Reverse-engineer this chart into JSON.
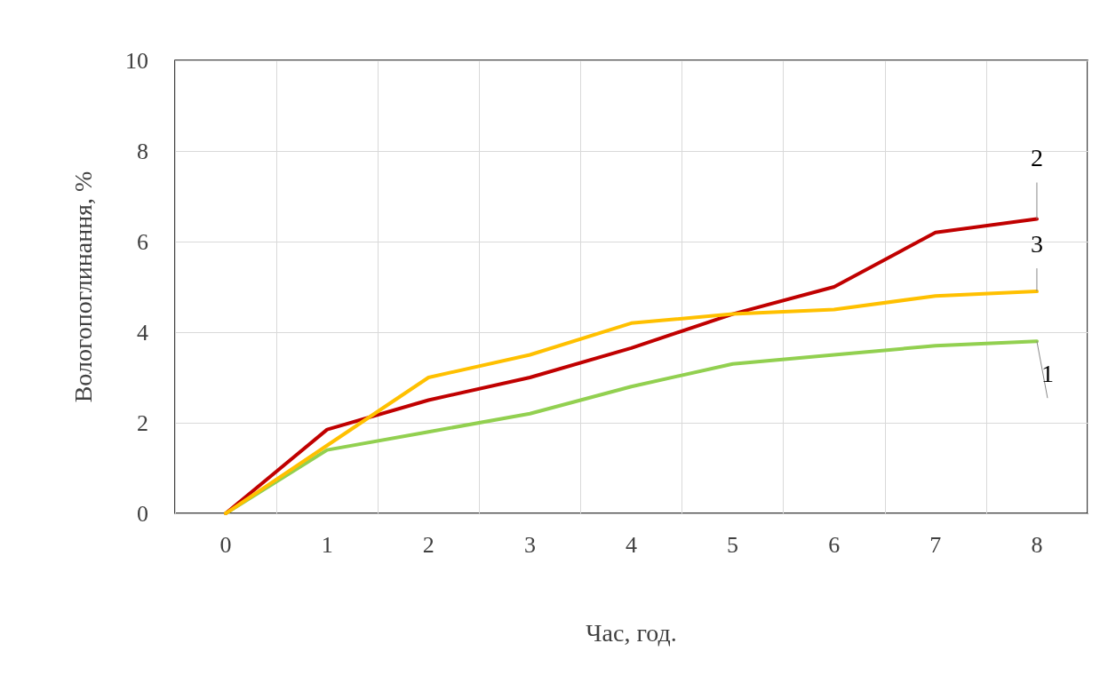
{
  "chart_data": {
    "type": "line",
    "xlabel": "Час, год.",
    "ylabel": "Вологопоглинання, %",
    "categories": [
      "0",
      "1",
      "2",
      "3",
      "4",
      "5",
      "6",
      "7",
      "8"
    ],
    "series": [
      {
        "name": "1",
        "color": "#92d050",
        "values": [
          0,
          1.4,
          1.8,
          2.2,
          2.8,
          3.3,
          3.5,
          3.7,
          3.8
        ]
      },
      {
        "name": "2",
        "color": "#c00000",
        "values": [
          0,
          1.85,
          2.5,
          3.0,
          3.65,
          4.4,
          5.0,
          6.2,
          6.5
        ]
      },
      {
        "name": "3",
        "color": "#ffc000",
        "values": [
          0,
          1.5,
          3.0,
          3.5,
          4.2,
          4.4,
          4.5,
          4.8,
          4.9
        ]
      }
    ],
    "ylim": [
      0,
      10
    ],
    "yticks": [
      0,
      2,
      4,
      6,
      8,
      10
    ],
    "grid": true,
    "legend": false,
    "marker": "none",
    "line_style": "solid"
  }
}
